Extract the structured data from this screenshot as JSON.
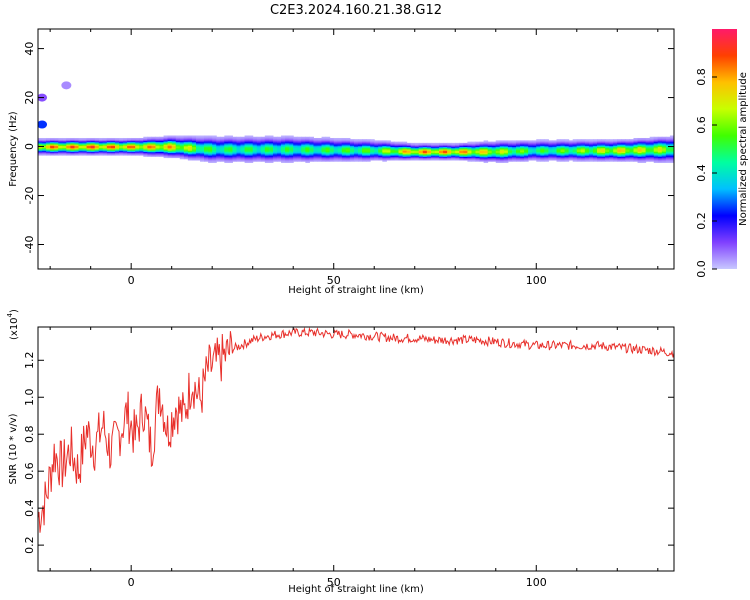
{
  "title": "C2E3.2024.160.21.38.G12",
  "colors": {
    "snr_line": "#e8302b",
    "colormap": [
      "#c8c8ff",
      "#8040ff",
      "#0000ff",
      "#00c0ff",
      "#00ffa0",
      "#40ff00",
      "#c8ff00",
      "#ffc000",
      "#ff4000",
      "#ff1a6a"
    ]
  },
  "chart_data": [
    {
      "type": "heatmap",
      "xlabel": "Height of straight line (km)",
      "ylabel": "Frequency (Hz)",
      "xlim": [
        -23,
        134
      ],
      "ylim": [
        -50,
        48
      ],
      "x_ticks": [
        0,
        50,
        100
      ],
      "y_ticks": [
        -40,
        -20,
        0,
        20,
        40
      ],
      "colorbar": {
        "label": "Normalized spectral amplitude",
        "range": [
          0,
          1
        ],
        "ticks": [
          "0.0",
          "0.2",
          "0.4",
          "0.6",
          "0.8"
        ]
      },
      "band": {
        "description_points_x": [
          -23,
          -10,
          0,
          10,
          20,
          40,
          60,
          70,
          80,
          90,
          100,
          110,
          120,
          134
        ],
        "center_freq_hz": [
          0,
          0,
          0,
          0,
          -1,
          -1,
          -1.5,
          -2,
          -2,
          -2,
          -1.5,
          -1.5,
          -1.5,
          -1
        ],
        "peak_amplitude": [
          0.9,
          0.95,
          0.9,
          0.85,
          0.55,
          0.55,
          0.6,
          0.9,
          0.9,
          0.75,
          0.55,
          0.65,
          0.8,
          0.7
        ],
        "half_width_hz": [
          3,
          3,
          3,
          4,
          5,
          5,
          4,
          3,
          3,
          4,
          4,
          4,
          4,
          5
        ]
      },
      "blips": [
        {
          "x": -22,
          "y": 9,
          "amp": 0.25
        },
        {
          "x": -22,
          "y": 20,
          "amp": 0.1
        },
        {
          "x": -16,
          "y": 25,
          "amp": 0.05
        }
      ]
    },
    {
      "type": "line",
      "xlabel": "Height of straight line (km)",
      "ylabel": "SNR (10 * v/v)",
      "multiplier": "(x10",
      "multiplier_exp": "4",
      "xlim": [
        -23,
        134
      ],
      "ylim": [
        0.06,
        1.38
      ],
      "x_ticks": [
        0,
        50,
        100
      ],
      "y_ticks": [
        0.2,
        0.4,
        0.6,
        0.8,
        1.0,
        1.2
      ],
      "series": [
        {
          "x": [
            -23,
            -21,
            -19,
            -17,
            -15,
            -13,
            -11,
            -9,
            -7,
            -5,
            -3,
            -1,
            1,
            3,
            5,
            7,
            9,
            11,
            13,
            15,
            17,
            19,
            21,
            23,
            25,
            27,
            30,
            33,
            36,
            40,
            45,
            50,
            55,
            60,
            65,
            70,
            75,
            80,
            85,
            90,
            95,
            100,
            105,
            110,
            115,
            120,
            125,
            130,
            134
          ],
          "y": [
            0.35,
            0.45,
            0.7,
            0.62,
            0.72,
            0.6,
            0.82,
            0.73,
            0.85,
            0.7,
            0.8,
            0.92,
            0.78,
            0.95,
            0.72,
            1.05,
            0.82,
            0.95,
            0.9,
            1.1,
            0.98,
            1.15,
            1.18,
            1.22,
            1.26,
            1.28,
            1.31,
            1.33,
            1.34,
            1.35,
            1.35,
            1.34,
            1.34,
            1.33,
            1.32,
            1.32,
            1.31,
            1.31,
            1.31,
            1.3,
            1.29,
            1.28,
            1.28,
            1.28,
            1.28,
            1.27,
            1.26,
            1.25,
            1.24
          ]
        }
      ]
    }
  ]
}
